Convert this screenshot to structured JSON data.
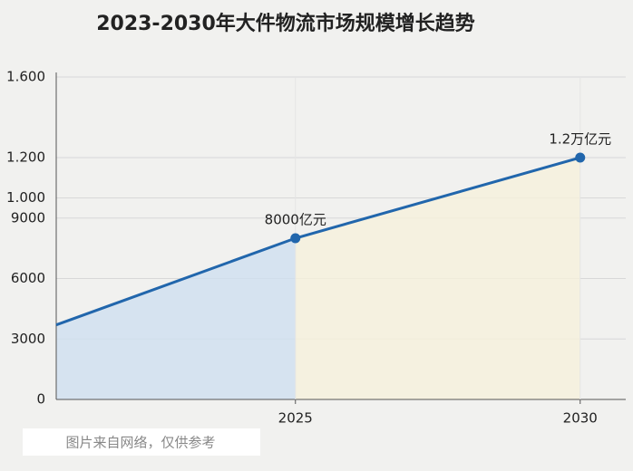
{
  "chart_data": {
    "type": "line",
    "title": "2023-2030年大件物流市场规模增长趋势",
    "x": [
      2020.8,
      2025,
      2030
    ],
    "series": [
      {
        "name": null,
        "color": "#2166ac",
        "values": [
          3700,
          8000,
          12000
        ],
        "value_labels": [
          null,
          "8000亿元",
          "1.2万亿元"
        ]
      }
    ],
    "fill_colors": [
      "#cfe0f0",
      "#f6f1dc"
    ],
    "xlim": [
      2020.8,
      2030.8
    ],
    "xticks": [
      2025,
      2030
    ],
    "ylim": [
      0,
      16000
    ],
    "yticks": [
      0,
      3000,
      6000,
      9000,
      {
        "value": 10000,
        "label": "1.000"
      },
      {
        "value": 12000,
        "label": "1.200"
      },
      {
        "value": 16000,
        "label": "1.600"
      }
    ],
    "grid": true,
    "watermark": "图片来自网络，仅供参考"
  }
}
